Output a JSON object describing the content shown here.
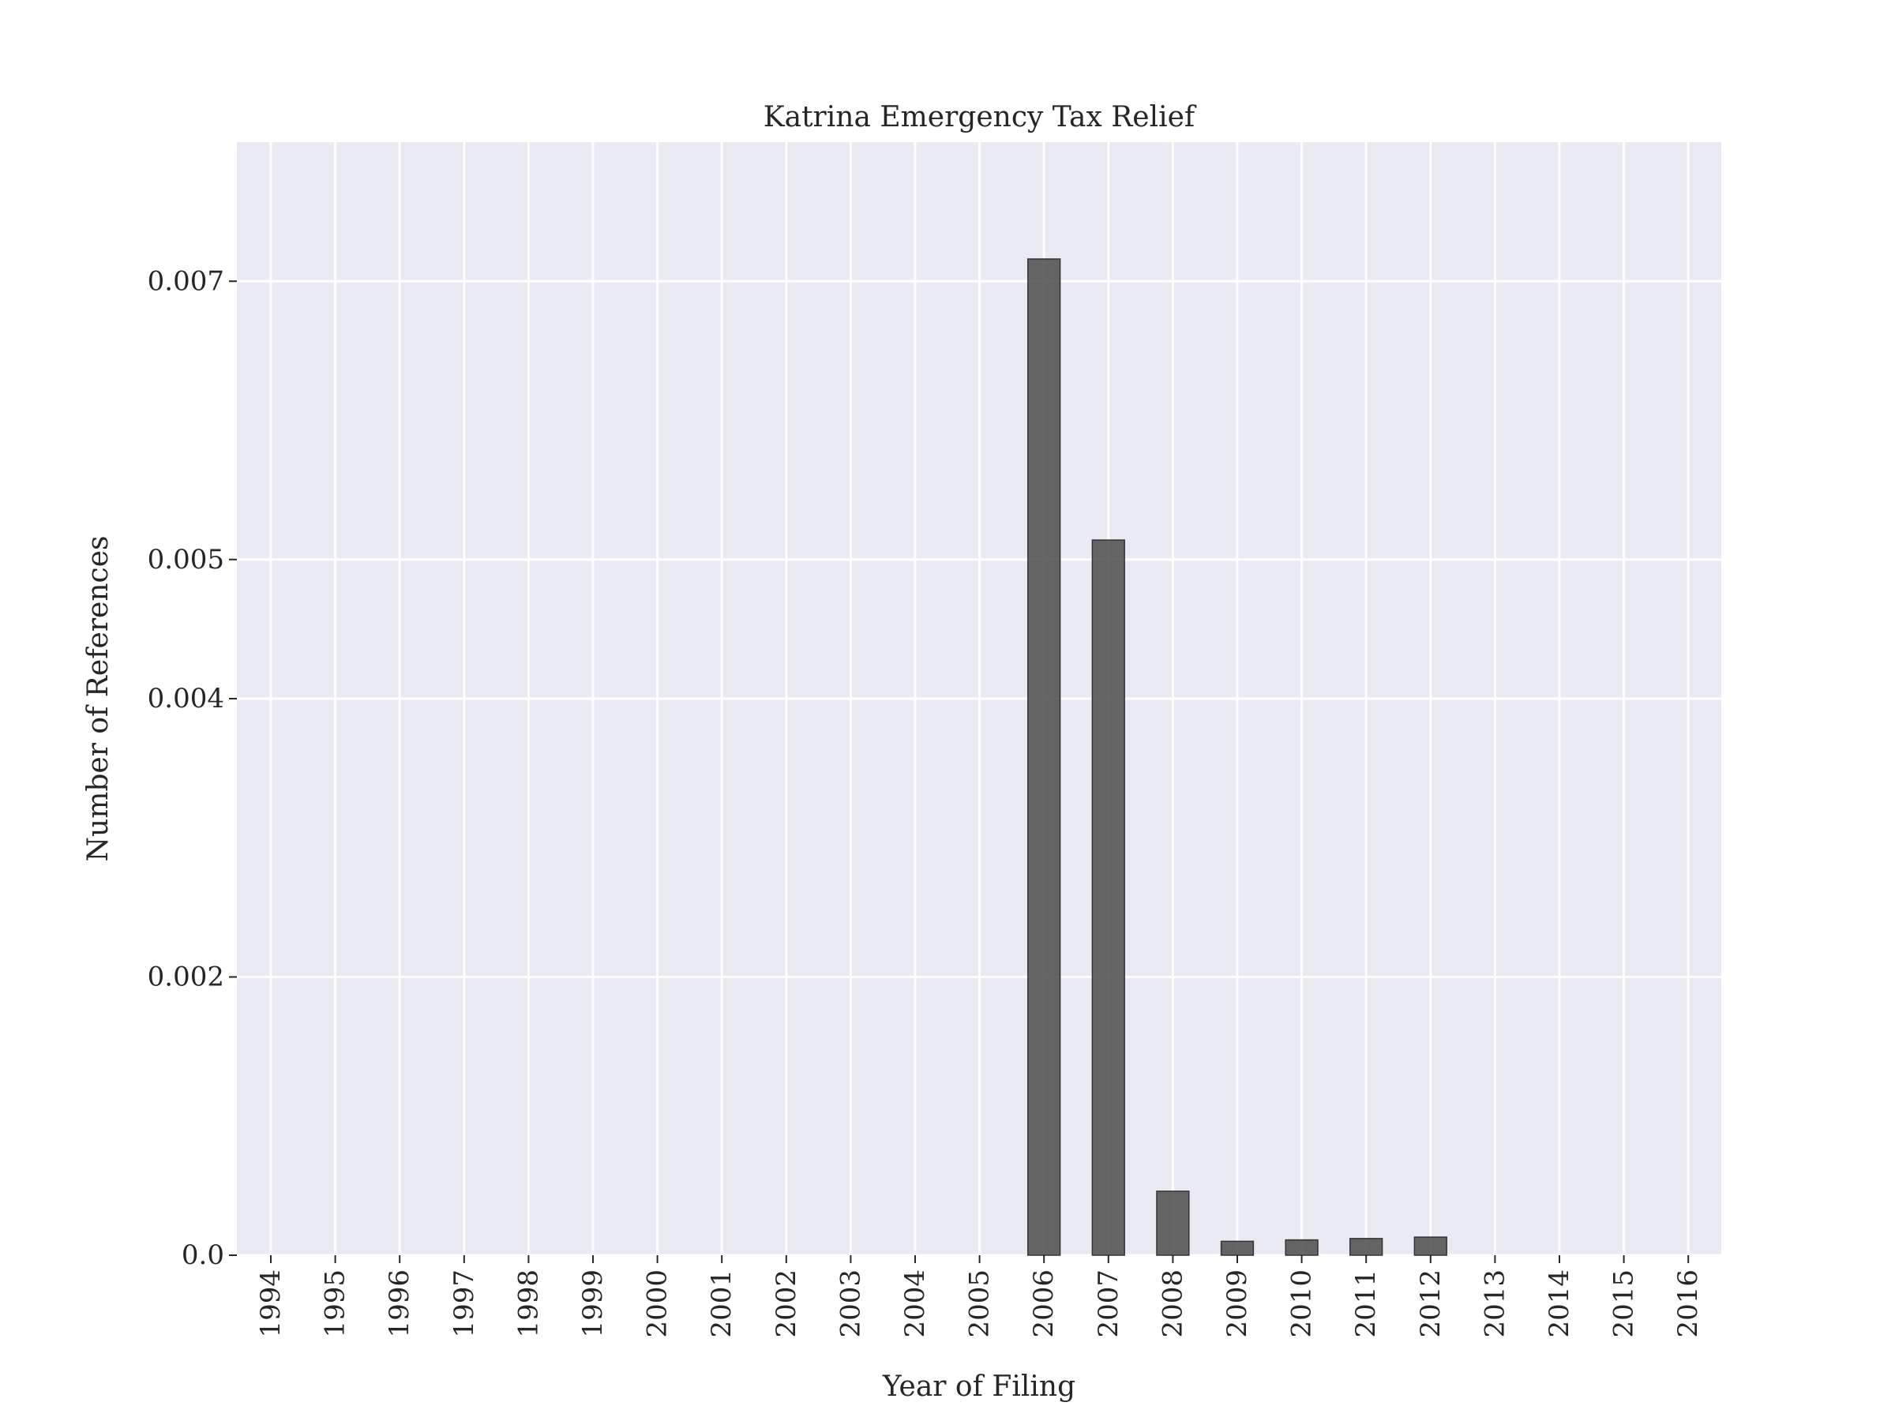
{
  "chart_data": {
    "type": "bar",
    "title": "Katrina Emergency Tax Relief",
    "xlabel": "Year of Filing",
    "ylabel": "Number of References",
    "categories": [
      "1994",
      "1995",
      "1996",
      "1997",
      "1998",
      "1999",
      "2000",
      "2001",
      "2002",
      "2003",
      "2004",
      "2005",
      "2006",
      "2007",
      "2008",
      "2009",
      "2010",
      "2011",
      "2012",
      "2013",
      "2014",
      "2015",
      "2016"
    ],
    "values": [
      0,
      0,
      0,
      0,
      0,
      0,
      0,
      0,
      0,
      0,
      0,
      0,
      0.00716,
      0.00514,
      0.00046,
      0.0001,
      0.00011,
      0.00012,
      0.00013,
      0,
      0,
      0,
      0
    ],
    "yticks": [
      0,
      0.002,
      0.004,
      0.005,
      0.007
    ],
    "ytick_labels": [
      "0.0",
      "0.002",
      "0.004",
      "0.005",
      "0.007"
    ],
    "ylim": [
      0,
      0.008
    ],
    "grid": true,
    "colors": {
      "bar": "#555555",
      "plot_bg": "#eaeaf2",
      "grid": "#ffffff"
    }
  }
}
